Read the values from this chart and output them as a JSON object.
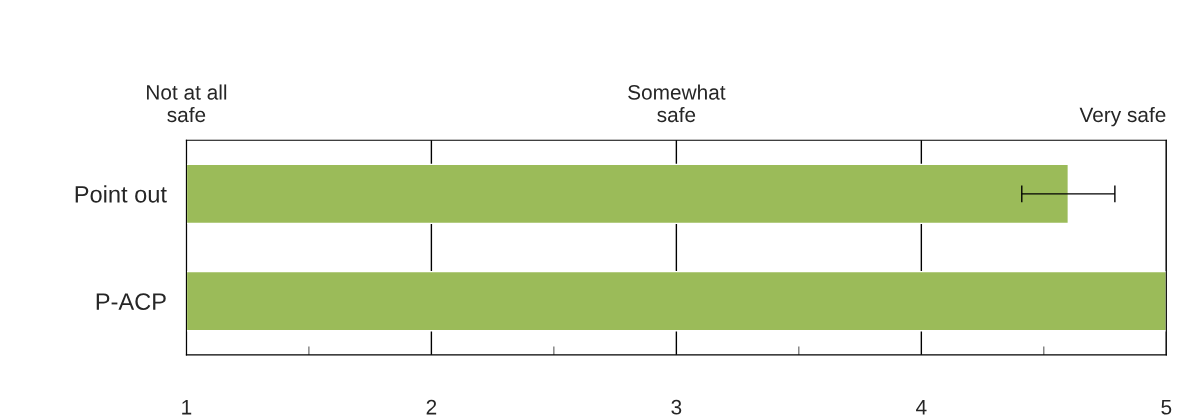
{
  "chart_data": {
    "type": "bar",
    "orientation": "horizontal",
    "categories": [
      "Point out",
      "P-ACP"
    ],
    "values": [
      4.6,
      5
    ],
    "errors": [
      [
        4.41,
        4.79
      ],
      null
    ],
    "color": "#9bbb59",
    "xlim": [
      1,
      5
    ],
    "xticks": [
      1,
      {
        "value": 1.5,
        "label": null
      },
      2,
      {
        "value": 2.5,
        "label": null
      },
      3,
      {
        "value": 3.5,
        "label": null
      },
      4,
      {
        "value": 4.5,
        "label": null
      },
      5
    ],
    "annotations": [
      "Not at all\nsafe",
      "Somewhat\nsafe",
      "Very safe"
    ],
    "grid": "x",
    "legend": false
  }
}
